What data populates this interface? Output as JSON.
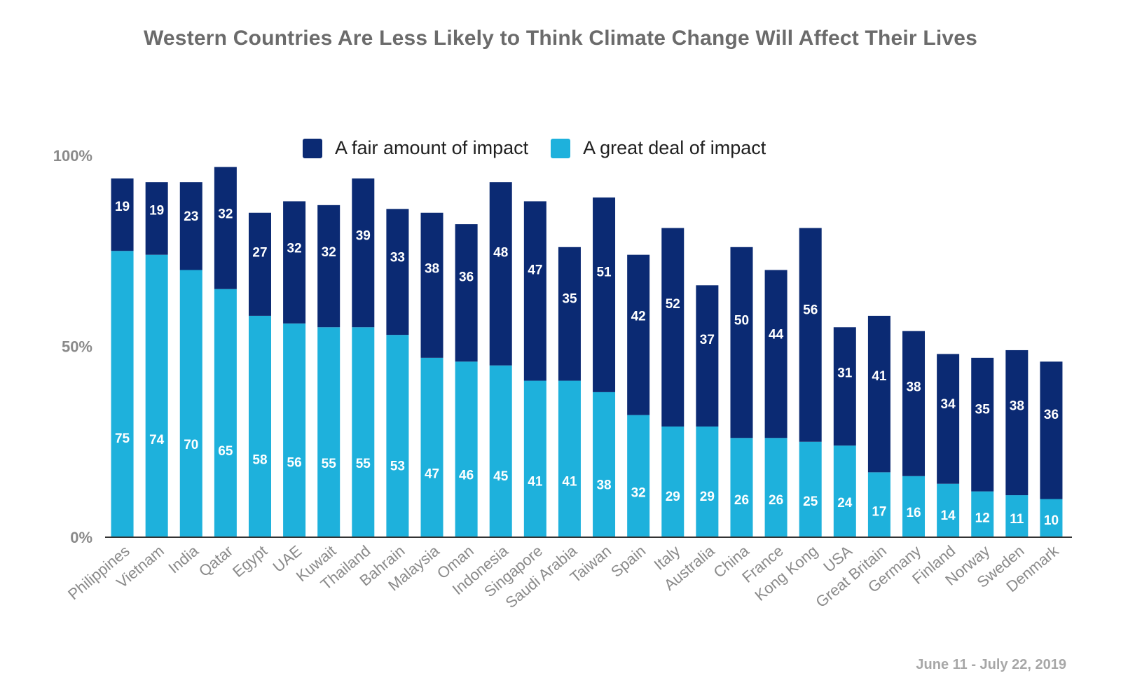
{
  "footnote": "June 11 - July 22, 2019",
  "colors": {
    "great_deal": "#1eb1dc",
    "fair_amount": "#0b2a73",
    "axis": "#333333",
    "tick_text": "#8a8a8a"
  },
  "chart_data": {
    "type": "bar",
    "stacked": true,
    "title": "Western Countries Are Less Likely to Think Climate Change Will Affect Their Lives",
    "xlabel": "",
    "ylabel": "",
    "ylim": [
      0,
      100
    ],
    "yticks": [
      "0%",
      "50%",
      "100%"
    ],
    "grid": false,
    "legend_position": "top",
    "categories": [
      "Philippines",
      "Vietnam",
      "India",
      "Qatar",
      "Egypt",
      "UAE",
      "Kuwait",
      "Thailand",
      "Bahrain",
      "Malaysia",
      "Oman",
      "Indonesia",
      "Singapore",
      "Saudi Arabia",
      "Taiwan",
      "Spain",
      "Italy",
      "Australia",
      "China",
      "France",
      "Kong Kong",
      "USA",
      "Great Britain",
      "Germany",
      "Finland",
      "Norway",
      "Sweden",
      "Denmark"
    ],
    "series": [
      {
        "name": "A great deal of impact",
        "values": [
          75,
          74,
          70,
          65,
          58,
          56,
          55,
          55,
          53,
          47,
          46,
          45,
          41,
          41,
          38,
          32,
          29,
          29,
          26,
          26,
          25,
          24,
          17,
          16,
          14,
          12,
          11,
          10
        ]
      },
      {
        "name": "A fair amount of impact",
        "values": [
          19,
          19,
          23,
          32,
          27,
          32,
          32,
          39,
          33,
          38,
          36,
          48,
          47,
          35,
          51,
          42,
          52,
          37,
          50,
          44,
          56,
          31,
          41,
          38,
          34,
          35,
          38,
          36
        ]
      }
    ]
  }
}
